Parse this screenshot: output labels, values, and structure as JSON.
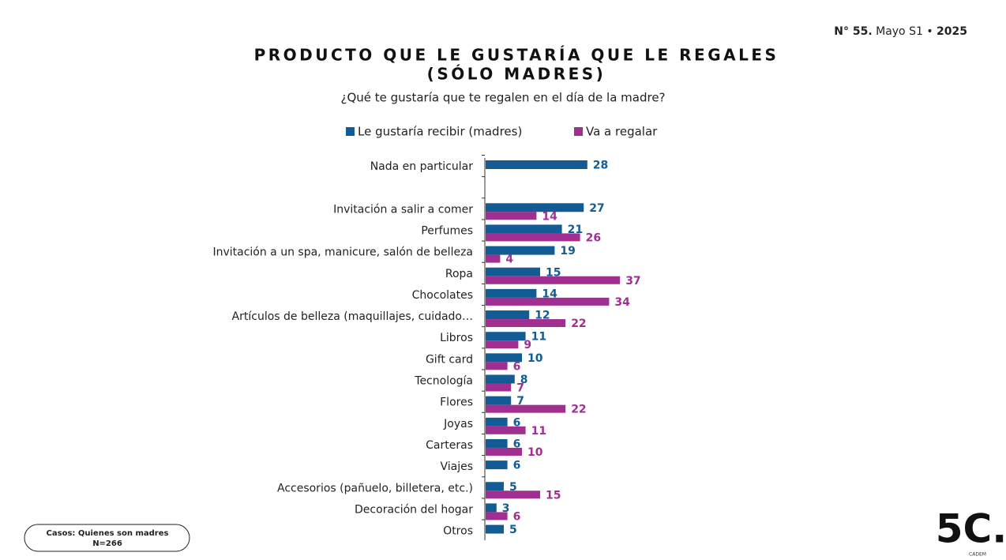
{
  "header": {
    "number": "N° 55.",
    "period": "Mayo S1 •",
    "year": "2025"
  },
  "chart_data": {
    "type": "hbar",
    "title": "PRODUCTO QUE LE GUSTARÍA QUE LE REGALES",
    "title_line2": "(SÓLO MADRES)",
    "subtitle": "¿Qué te gustaría que te regalen en el día de la madre?",
    "categories": [
      "Nada en particular",
      null,
      "Invitación a salir a comer",
      "Perfumes",
      "Invitación a un spa, manicure, salón de belleza",
      "Ropa",
      "Chocolates",
      "Artículos de belleza (maquillajes, cuidado…",
      "Libros",
      "Gift card",
      "Tecnología",
      "Flores",
      "Joyas",
      "Carteras",
      "Viajes",
      "Accesorios (pañuelo, billetera, etc.)",
      "Decoración del hogar",
      "Otros"
    ],
    "series": [
      {
        "name": "Le gustaría recibir (madres)",
        "color": "#135b94",
        "values": [
          28,
          null,
          27,
          21,
          19,
          15,
          14,
          12,
          11,
          10,
          8,
          7,
          6,
          6,
          6,
          5,
          3,
          5
        ]
      },
      {
        "name": "Va a regalar",
        "color": "#a12e91",
        "values": [
          null,
          null,
          14,
          26,
          4,
          37,
          34,
          22,
          9,
          6,
          7,
          22,
          11,
          10,
          null,
          15,
          6,
          null
        ]
      }
    ],
    "legend": "top"
  },
  "note": {
    "line1": "Casos: Quienes son madres",
    "line2": "N=266"
  },
  "logo": {
    "text": "5C.",
    "caption": "CADEM"
  }
}
